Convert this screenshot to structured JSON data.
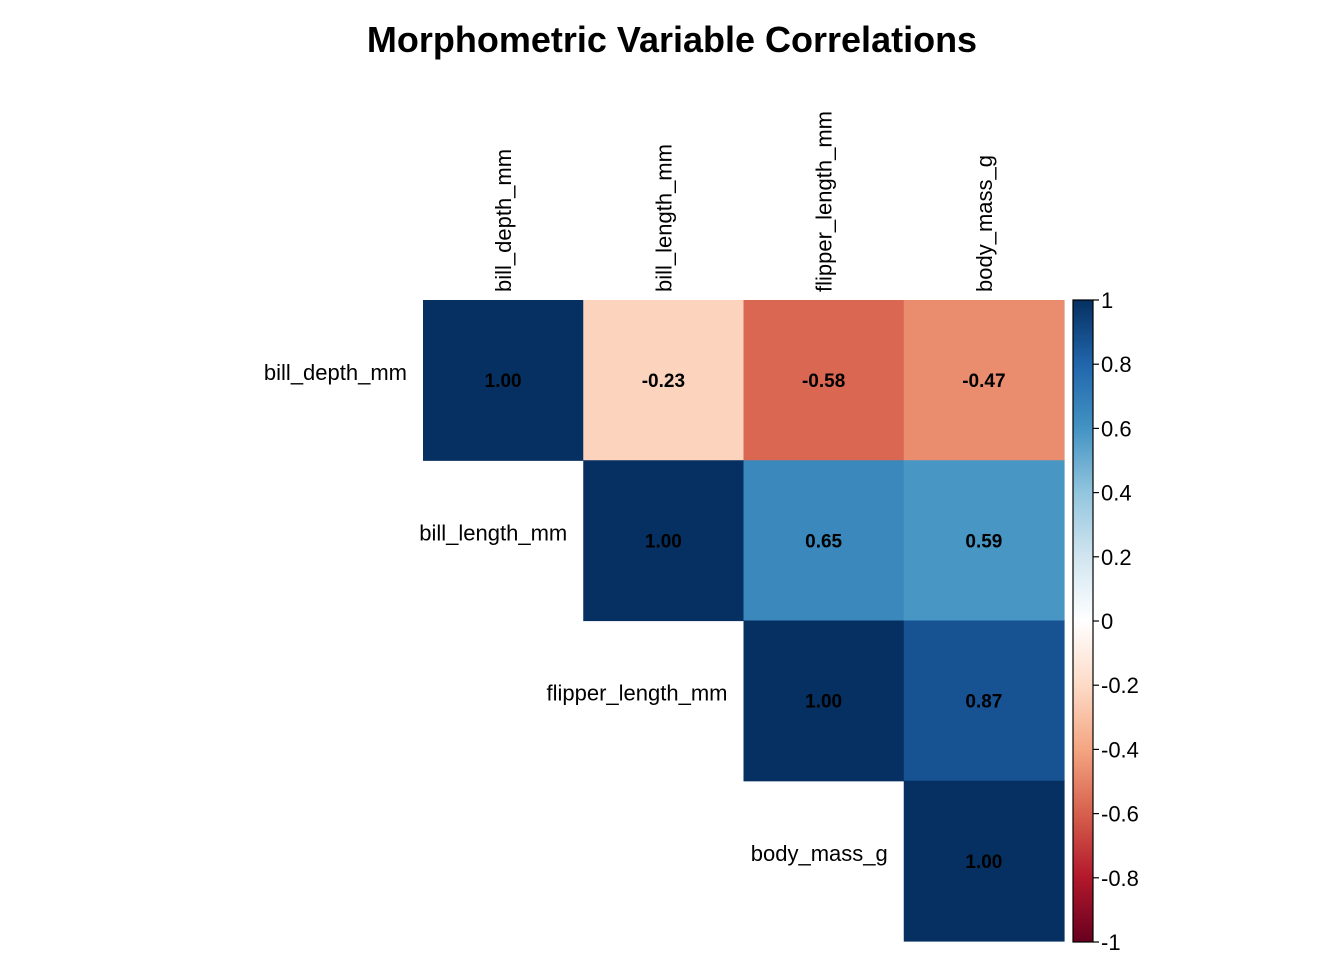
{
  "chart_data": {
    "type": "heatmap",
    "title": "Morphometric Variable Correlations",
    "variables": [
      "bill_depth_mm",
      "bill_length_mm",
      "flipper_length_mm",
      "body_mass_g"
    ],
    "layout": "upper-triangle",
    "values": [
      [
        "1.00",
        "-0.23",
        "-0.58",
        "-0.47"
      ],
      [
        null,
        "1.00",
        "0.65",
        "0.59"
      ],
      [
        null,
        null,
        "1.00",
        "0.87"
      ],
      [
        null,
        null,
        null,
        "1.00"
      ]
    ],
    "colorbar": {
      "range": [
        -1,
        1
      ],
      "ticks": [
        "1",
        "0.8",
        "0.6",
        "0.4",
        "0.2",
        "0",
        "-0.2",
        "-0.4",
        "-0.6",
        "-0.8",
        "-1"
      ],
      "colors": [
        "#67001F",
        "#B2182B",
        "#D6604D",
        "#F4A582",
        "#FDDBC7",
        "#FFFFFF",
        "#D1E5F0",
        "#92C5DE",
        "#4393C3",
        "#2166AC",
        "#053061"
      ]
    }
  }
}
